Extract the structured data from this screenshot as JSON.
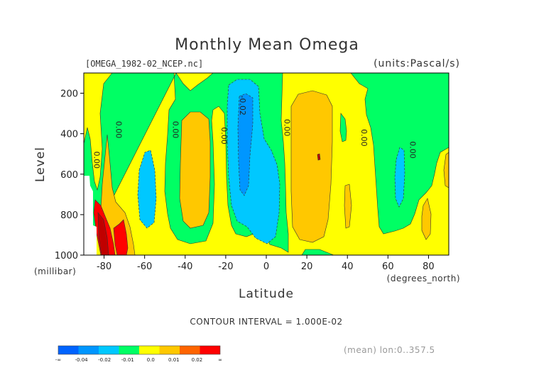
{
  "chart_data": {
    "type": "heatmap",
    "title": "Monthly Mean Omega",
    "file_label": "[OMEGA_1982-02_NCEP.nc]",
    "units_label": "(units:Pascal/s)",
    "xlabel": "Latitude",
    "ylabel": "Level",
    "x_units": "(degrees_north)",
    "y_units": "(millibar)",
    "xlim": [
      -90,
      90
    ],
    "ylim": [
      1000,
      100
    ],
    "x_ticks": [
      -80,
      -60,
      -40,
      -20,
      0,
      20,
      40,
      60,
      80
    ],
    "y_ticks": [
      200,
      400,
      600,
      800,
      1000
    ],
    "contour_interval_text": "CONTOUR INTERVAL = 1.000E-02",
    "mean_text": "(mean) lon:0..357.5",
    "contour_labels": [
      {
        "text": "0.00",
        "lat": -85,
        "level": 530
      },
      {
        "text": "0.00",
        "lat": -74,
        "level": 380
      },
      {
        "text": "0.00",
        "lat": -46,
        "level": 380
      },
      {
        "text": "0.00",
        "lat": -22,
        "level": 410
      },
      {
        "text": "-0.02",
        "lat": -13,
        "level": 260
      },
      {
        "text": "0.00",
        "lat": 9,
        "level": 370
      },
      {
        "text": "0.00",
        "lat": 47,
        "level": 420
      },
      {
        "text": "0.00",
        "lat": 71,
        "level": 480
      }
    ],
    "colorbar": {
      "colors": [
        "#0063ff",
        "#0096ff",
        "#00c8ff",
        "#00ff64",
        "#ffff00",
        "#ffc800",
        "#ff6400",
        "#ff0000"
      ],
      "labels": [
        "-∞",
        "-0.04",
        "-0.02",
        "-0.01",
        "0.0",
        "0.01",
        "0.02",
        "∞"
      ],
      "range": [
        -0.05,
        0.05
      ]
    },
    "fills": {
      "background": "#ffff00",
      "green": "#00ff64",
      "orange": "#ffc800",
      "cyan": "#00c8ff",
      "blue": "#0096ff",
      "red": "#ff0000",
      "darkred": "#c00000",
      "missing": "#ffffff"
    }
  }
}
